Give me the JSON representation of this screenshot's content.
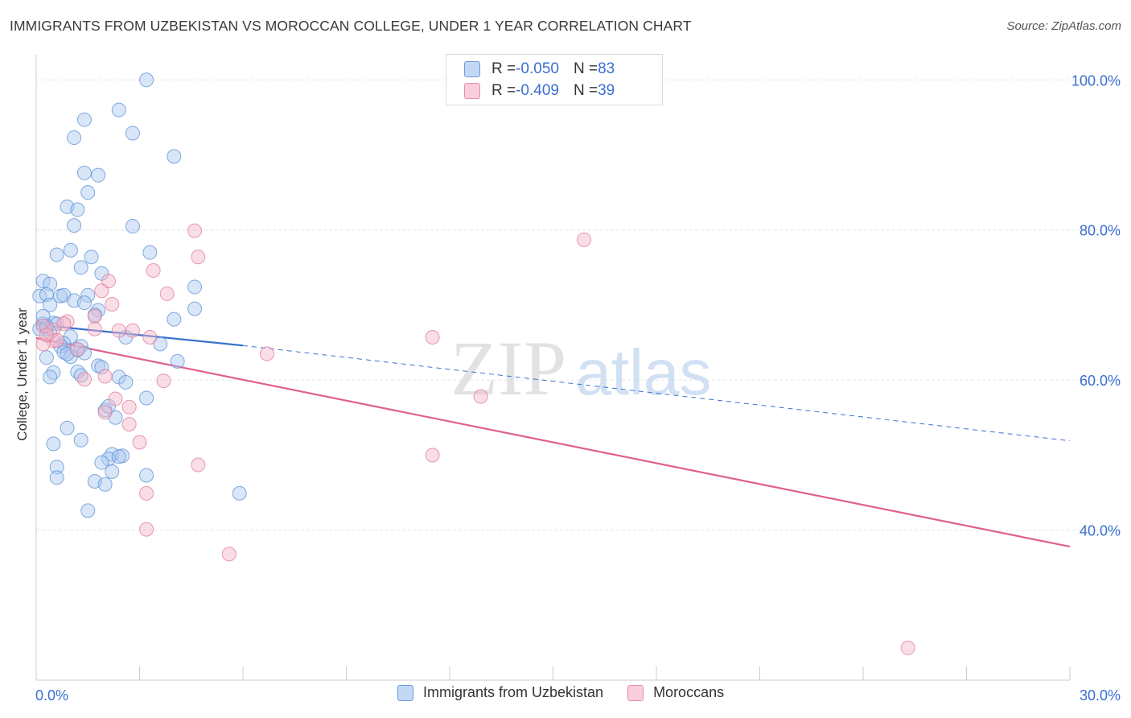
{
  "title": "IMMIGRANTS FROM UZBEKISTAN VS MOROCCAN COLLEGE, UNDER 1 YEAR CORRELATION CHART",
  "source": "Source: ZipAtlas.com",
  "watermark": {
    "zip": "ZIP",
    "atlas": "atlas"
  },
  "colors": {
    "blue": "#a8c8f0",
    "blue_stroke": "#5b8fd6",
    "blue_line": "#3a72d0",
    "pink": "#f5b6c8",
    "pink_stroke": "#e07899",
    "pink_line": "#e0608e",
    "axis_text": "#3a6fd0",
    "grid": "#e6e6e6"
  },
  "legend": {
    "rows": [
      {
        "r_label": "R = ",
        "r_value": "-0.050",
        "n_label": "N = ",
        "n_value": "83"
      },
      {
        "r_label": "R = ",
        "r_value": "-0.409",
        "n_label": "N = ",
        "n_value": "39"
      }
    ]
  },
  "bottom_legend": [
    "Immigrants from Uzbekistan",
    "Moroccans"
  ],
  "chart_data": {
    "type": "scatter",
    "title": "IMMIGRANTS FROM UZBEKISTAN VS MOROCCAN COLLEGE, UNDER 1 YEAR CORRELATION CHART",
    "xlabel": "",
    "ylabel": "College, Under 1 year",
    "xlim": [
      0,
      30
    ],
    "ylim": [
      20,
      104
    ],
    "x_tick_labels": [
      "0.0%",
      "30.0%"
    ],
    "y_ticks": [
      40,
      60,
      80,
      100
    ],
    "y_tick_labels": [
      "40.0%",
      "60.0%",
      "80.0%",
      "100.0%"
    ],
    "grid": true,
    "legend_position": "top-center",
    "series": [
      {
        "name": "Immigrants from Uzbekistan",
        "color": "#a8c8f0",
        "trend": {
          "x": [
            0,
            6.0
          ],
          "y": [
            67.4,
            64.6
          ],
          "dashed_to": {
            "x": 30.0,
            "y": 51.9
          }
        },
        "points": [
          [
            3.2,
            100
          ],
          [
            2.4,
            96.0
          ],
          [
            1.4,
            94.7
          ],
          [
            2.8,
            92.9
          ],
          [
            1.1,
            92.3
          ],
          [
            4.0,
            89.8
          ],
          [
            1.4,
            87.6
          ],
          [
            1.8,
            87.3
          ],
          [
            1.5,
            85.0
          ],
          [
            0.9,
            83.1
          ],
          [
            1.2,
            82.7
          ],
          [
            1.1,
            80.6
          ],
          [
            2.8,
            80.5
          ],
          [
            1.0,
            77.3
          ],
          [
            3.3,
            77.0
          ],
          [
            0.6,
            76.7
          ],
          [
            1.6,
            76.4
          ],
          [
            1.3,
            75.0
          ],
          [
            1.9,
            74.2
          ],
          [
            0.2,
            73.2
          ],
          [
            0.4,
            72.8
          ],
          [
            4.6,
            72.4
          ],
          [
            0.7,
            71.2
          ],
          [
            0.8,
            71.3
          ],
          [
            1.5,
            71.3
          ],
          [
            0.1,
            71.2
          ],
          [
            0.3,
            71.4
          ],
          [
            1.1,
            70.6
          ],
          [
            1.4,
            70.3
          ],
          [
            0.4,
            70.0
          ],
          [
            1.8,
            69.3
          ],
          [
            4.6,
            69.5
          ],
          [
            1.7,
            68.7
          ],
          [
            4.0,
            68.1
          ],
          [
            0.2,
            67.5
          ],
          [
            0.5,
            67.6
          ],
          [
            0.6,
            67.5
          ],
          [
            0.3,
            66.9
          ],
          [
            0.1,
            66.8
          ],
          [
            0.4,
            66.3
          ],
          [
            0.3,
            67.2
          ],
          [
            1.0,
            65.8
          ],
          [
            2.6,
            65.7
          ],
          [
            3.6,
            64.8
          ],
          [
            0.8,
            64.9
          ],
          [
            0.7,
            64.5
          ],
          [
            1.2,
            64.0
          ],
          [
            1.3,
            64.5
          ],
          [
            0.8,
            63.7
          ],
          [
            1.4,
            63.6
          ],
          [
            1.0,
            63.1
          ],
          [
            0.9,
            63.5
          ],
          [
            4.1,
            62.5
          ],
          [
            1.8,
            61.9
          ],
          [
            1.9,
            61.7
          ],
          [
            1.2,
            61.1
          ],
          [
            0.5,
            61.0
          ],
          [
            1.3,
            60.6
          ],
          [
            0.4,
            60.4
          ],
          [
            2.4,
            60.4
          ],
          [
            2.6,
            59.7
          ],
          [
            3.2,
            57.6
          ],
          [
            2.0,
            56.0
          ],
          [
            2.3,
            55.0
          ],
          [
            0.9,
            53.6
          ],
          [
            1.3,
            52.0
          ],
          [
            0.5,
            51.5
          ],
          [
            2.2,
            50.1
          ],
          [
            2.5,
            49.9
          ],
          [
            2.1,
            49.5
          ],
          [
            1.9,
            49.0
          ],
          [
            2.4,
            49.8
          ],
          [
            0.6,
            48.4
          ],
          [
            2.2,
            47.8
          ],
          [
            3.2,
            47.3
          ],
          [
            0.6,
            47.0
          ],
          [
            1.7,
            46.5
          ],
          [
            2.0,
            46.1
          ],
          [
            5.9,
            44.9
          ],
          [
            1.5,
            42.6
          ],
          [
            0.2,
            68.5
          ],
          [
            0.3,
            63.0
          ],
          [
            2.1,
            56.5
          ]
        ]
      },
      {
        "name": "Moroccans",
        "color": "#f5b6c8",
        "trend": {
          "x": [
            0,
            30.0
          ],
          "y": [
            65.6,
            37.8
          ]
        },
        "points": [
          [
            4.6,
            79.9
          ],
          [
            15.9,
            78.7
          ],
          [
            4.7,
            76.4
          ],
          [
            3.4,
            74.6
          ],
          [
            2.1,
            73.2
          ],
          [
            1.9,
            71.9
          ],
          [
            3.8,
            71.5
          ],
          [
            2.2,
            70.1
          ],
          [
            1.7,
            68.5
          ],
          [
            0.9,
            67.8
          ],
          [
            0.8,
            67.5
          ],
          [
            0.2,
            67.2
          ],
          [
            0.5,
            66.7
          ],
          [
            2.4,
            66.6
          ],
          [
            2.8,
            66.6
          ],
          [
            1.7,
            66.8
          ],
          [
            3.3,
            65.7
          ],
          [
            11.5,
            65.7
          ],
          [
            0.5,
            65.2
          ],
          [
            0.6,
            65.3
          ],
          [
            0.2,
            64.8
          ],
          [
            1.2,
            64.1
          ],
          [
            6.7,
            63.5
          ],
          [
            2.0,
            60.5
          ],
          [
            1.4,
            60.1
          ],
          [
            3.7,
            59.9
          ],
          [
            12.9,
            57.8
          ],
          [
            2.3,
            57.5
          ],
          [
            2.7,
            56.4
          ],
          [
            2.0,
            55.7
          ],
          [
            2.7,
            54.1
          ],
          [
            3.0,
            51.7
          ],
          [
            11.5,
            50.0
          ],
          [
            4.7,
            48.7
          ],
          [
            3.2,
            44.9
          ],
          [
            3.2,
            40.1
          ],
          [
            5.6,
            36.8
          ],
          [
            25.3,
            24.3
          ],
          [
            0.3,
            66.0
          ]
        ]
      }
    ]
  }
}
